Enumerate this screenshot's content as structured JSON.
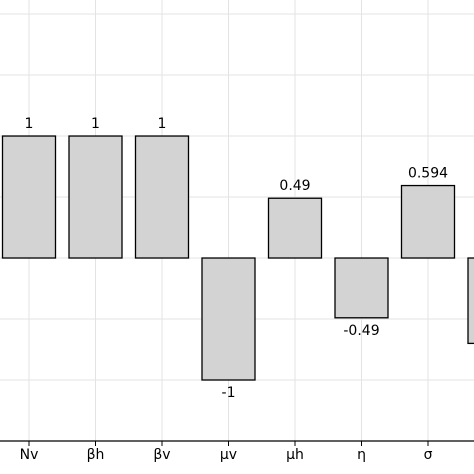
{
  "chart_data": {
    "type": "bar",
    "categories": [
      "Nv",
      "βh",
      "βv",
      "μv",
      "μh",
      "η",
      "σ",
      null
    ],
    "values": [
      1,
      1,
      1,
      -1,
      0.49,
      -0.49,
      0.594,
      -0.7
    ],
    "color": "#d3d3d3",
    "ylim": [
      -1.5,
      2.115
    ],
    "yticks": [
      -1.5,
      -1,
      -0.5,
      0,
      0.5,
      1,
      1.5,
      2
    ],
    "grid": true
  }
}
